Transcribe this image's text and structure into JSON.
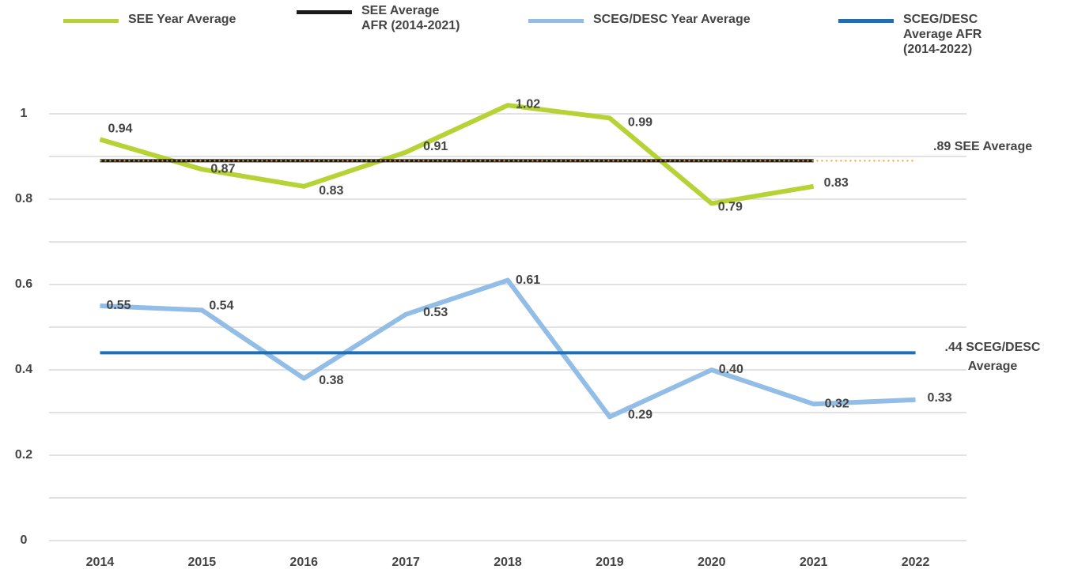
{
  "chart_data": {
    "type": "line",
    "categories": [
      "2014",
      "2015",
      "2016",
      "2017",
      "2018",
      "2019",
      "2020",
      "2021",
      "2022"
    ],
    "series": [
      {
        "name": "SEE Year Average",
        "color": "#b5d334",
        "width": 6,
        "values": [
          0.94,
          0.87,
          0.83,
          0.91,
          1.02,
          0.99,
          0.79,
          0.83,
          null
        ],
        "value_labels": [
          "0.94",
          "0.87",
          "0.83",
          "0.91",
          "1.02",
          "0.99",
          "0.79",
          "0.83",
          null
        ]
      },
      {
        "name": "SEE Average AFR (2014-2021)",
        "color": "#1a1a1a",
        "width": 4,
        "dotted_overlay": "#f0a030",
        "values": [
          0.89,
          0.89,
          0.89,
          0.89,
          0.89,
          0.89,
          0.89,
          0.89,
          null
        ]
      },
      {
        "name": "SCEG/DESC Year Average",
        "color": "#92bde6",
        "width": 6,
        "values": [
          0.55,
          0.54,
          0.38,
          0.53,
          0.61,
          0.29,
          0.4,
          0.32,
          0.33
        ],
        "value_labels": [
          "0.55",
          "0.54",
          "0.38",
          "0.53",
          "0.61",
          "0.29",
          "0.40",
          "0.32",
          "0.33"
        ]
      },
      {
        "name": "SCEG/DESC Average AFR (2014-2022)",
        "color": "#1f6fb5",
        "width": 4,
        "values": [
          0.44,
          0.44,
          0.44,
          0.44,
          0.44,
          0.44,
          0.44,
          0.44,
          0.44
        ]
      }
    ],
    "annotations": [
      ".89 SEE Average",
      ".44 SCEG/DESC Average"
    ],
    "ylim": [
      0,
      1.1
    ],
    "yticks": [
      0,
      0.2,
      0.4,
      0.6,
      0.8,
      1
    ],
    "minor_yticks": [
      0.1,
      0.3,
      0.5,
      0.7,
      0.9
    ],
    "grid": true,
    "legend": "top"
  }
}
